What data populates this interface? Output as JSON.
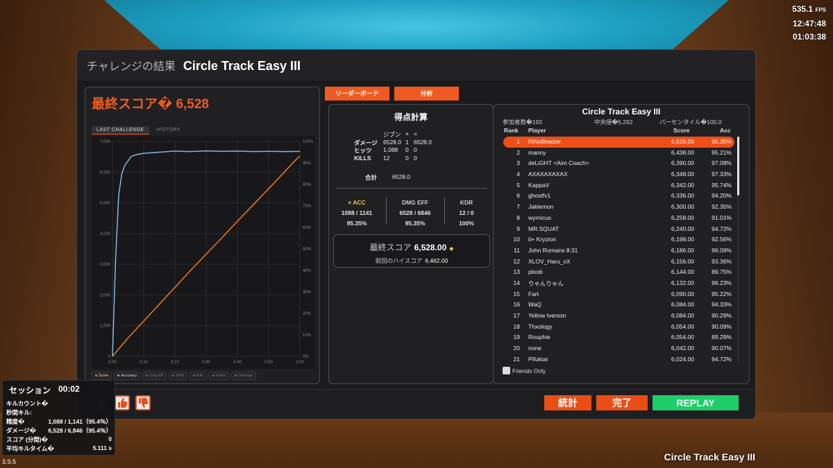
{
  "hud": {
    "fps": "535.1",
    "fps_unit": "FPS",
    "clock": "12:47:48",
    "elapsed": "01:03:38",
    "scenario": "Circle Track Easy III",
    "version": "3.9.5"
  },
  "window": {
    "title_jp": "チャレンジの結果",
    "title": "Circle Track Easy III"
  },
  "left": {
    "final_score_label": "最終スコア�",
    "final_score": "6,528",
    "tab_last": "LAST CHALLENGE",
    "tab_history": "HISTORY",
    "legend": [
      {
        "label": "Score",
        "color": "#f07a22",
        "on": true
      },
      {
        "label": "Accuracy",
        "color": "#7fb9e8",
        "on": true
      },
      {
        "label": "Dmg Eff",
        "color": "#666",
        "on": false
      },
      {
        "label": "SPM",
        "color": "#666",
        "on": false
      },
      {
        "label": "Kills",
        "color": "#666",
        "on": false
      },
      {
        "label": "Kills/s",
        "color": "#666",
        "on": false
      },
      {
        "label": "Damage",
        "color": "#666",
        "on": false
      }
    ]
  },
  "chart_data": {
    "type": "line",
    "y_left_ticks": [
      "0",
      "1,000",
      "2,000",
      "3,000",
      "4,000",
      "5,000",
      "6,000",
      "7,000"
    ],
    "y_right_ticks": [
      "0%",
      "10%",
      "20%",
      "30%",
      "40%",
      "50%",
      "60%",
      "70%",
      "80%",
      "90%",
      "100%"
    ],
    "x_ticks": [
      "0:00",
      "0:10",
      "0:20",
      "0:30",
      "0:40",
      "0:50",
      "1:00"
    ],
    "ylim_left": [
      0,
      7000
    ],
    "ylim_right": [
      0,
      100
    ],
    "xlim_seconds": [
      0,
      60
    ],
    "series": [
      {
        "name": "Score",
        "color": "#f07a22",
        "axis": "left",
        "x": [
          0,
          5,
          10,
          15,
          20,
          25,
          30,
          35,
          40,
          45,
          50,
          55,
          58,
          60
        ],
        "y": [
          0,
          600,
          1150,
          1700,
          2250,
          2800,
          3330,
          3860,
          4400,
          4930,
          5460,
          6000,
          6330,
          6528
        ]
      },
      {
        "name": "Accuracy",
        "color": "#7fb9e8",
        "axis": "right",
        "x": [
          0,
          1,
          2,
          3,
          4,
          5,
          6,
          8,
          10,
          15,
          20,
          25,
          30,
          35,
          40,
          45,
          50,
          55,
          60
        ],
        "y": [
          0,
          45,
          75,
          85,
          89,
          91,
          93,
          94,
          94.5,
          95,
          95.5,
          95.3,
          95.6,
          95.4,
          95.5,
          95.3,
          95.4,
          95.3,
          95.35
        ]
      }
    ]
  },
  "tabs": {
    "leaderboard": "リーダーボード",
    "analysis": "分析"
  },
  "calc": {
    "title": "得点計算",
    "header": [
      "",
      "ジブン",
      "×",
      "="
    ],
    "rows": [
      [
        "ダメージ",
        "6528.0",
        "1",
        "6528.0"
      ],
      [
        "ヒッツ",
        "1,088",
        "0",
        "0"
      ],
      [
        "KILLS",
        "12",
        "0",
        "0"
      ]
    ],
    "total_label": "合計",
    "total": "6528.0",
    "stats": [
      {
        "head": "× ACC",
        "line1": "1088 / 1141",
        "line2": "95.35%"
      },
      {
        "head": "DMG EFF",
        "line1": "6528 / 6846",
        "line2": "95.35%"
      },
      {
        "head": "KDR",
        "line1": "12 / 0",
        "line2": "100%"
      }
    ],
    "final_label": "最終スコア",
    "final_value": "6,528.00",
    "prev_label": "前回のハイスコア",
    "prev_value": "6,462.00"
  },
  "leaderboard": {
    "title": "Circle Track Easy III",
    "participants": "参加者数�193",
    "median": "中央値�5,292",
    "percentile": "パーセンタイル�100.0",
    "columns": [
      "Rank",
      "Player",
      "Score",
      "Acc"
    ],
    "rows": [
      [
        "1",
        "RiNoBowzer",
        "6,528.00",
        "95.35%"
      ],
      [
        "2",
        "manny",
        "6,438.00",
        "95.21%"
      ],
      [
        "3",
        "deLiGHT <Aim Coach>",
        "6,390.00",
        "97.08%"
      ],
      [
        "4",
        "AXAXAXAXAX",
        "6,348.00",
        "97.33%"
      ],
      [
        "5",
        "KappaV",
        "6,342.00",
        "95.74%"
      ],
      [
        "6",
        "ghostfv1",
        "6,336.00",
        "94.20%"
      ],
      [
        "7",
        "Jaklemon",
        "6,300.00",
        "92.35%"
      ],
      [
        "8",
        "wyrnicus",
        "6,258.00",
        "91.01%"
      ],
      [
        "9",
        "MR.SQUAT",
        "6,240.00",
        "94.72%"
      ],
      [
        "10",
        "ti+ Kryzion",
        "6,198.00",
        "92.56%"
      ],
      [
        "11",
        "John Romans 8:31",
        "6,186.00",
        "96.09%"
      ],
      [
        "12",
        "XLOV_Haru_xX",
        "6,156.00",
        "93.36%"
      ],
      [
        "13",
        "ploob",
        "6,144.00",
        "89.75%"
      ],
      [
        "14",
        "りゃんりゃん",
        "6,132.00",
        "96.23%"
      ],
      [
        "15",
        "Fart",
        "6,090.00",
        "95.22%"
      ],
      [
        "16",
        "WaQ",
        "6,084.00",
        "94.33%"
      ],
      [
        "17",
        "Yellow Iverson",
        "6,084.00",
        "90.29%"
      ],
      [
        "18",
        "Thxology",
        "6,054.00",
        "90.09%"
      ],
      [
        "19",
        "Rouphie",
        "6,054.00",
        "89.29%"
      ],
      [
        "20",
        "none",
        "6,042.00",
        "90.07%"
      ],
      [
        "21",
        "Pifuktar",
        "6,024.00",
        "94.72%"
      ]
    ],
    "friends_only": "Friends Only"
  },
  "bottom": {
    "stats": "統計",
    "done": "完了",
    "replay": "REPLAY",
    "stats_color": "#e84e16",
    "replay_color": "#1fcc6a"
  },
  "session": {
    "title": "セッション",
    "time": "00:02",
    "rows": [
      [
        "キルカウント�",
        ""
      ],
      [
        "秒間キル:",
        ""
      ],
      [
        "精度�",
        "1,088 / 1,141（95.4％）"
      ],
      [
        "ダメージ�",
        "6,528 / 6,846（95.4％）"
      ],
      [
        "スコア (分間)�",
        "0"
      ],
      [
        "平均キルタイム�",
        "5.111 s"
      ]
    ]
  }
}
